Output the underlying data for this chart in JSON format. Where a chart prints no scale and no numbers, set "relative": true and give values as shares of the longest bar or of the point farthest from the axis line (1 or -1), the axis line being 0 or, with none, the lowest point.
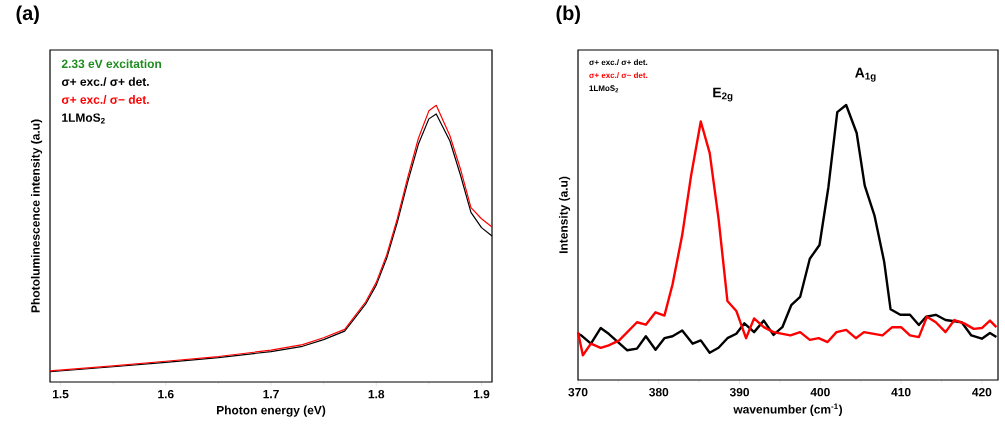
{
  "chart_data": [
    {
      "type": "line",
      "title": "(a)",
      "xlabel": "Photon energy (eV)",
      "ylabel": "Photoluminescence intensity (a.u)",
      "relative": true,
      "xlim": [
        1.49,
        1.91
      ],
      "xticks": [
        1.5,
        1.6,
        1.7,
        1.8,
        1.9
      ],
      "annotations": [
        "2.33 eV excitation",
        "1LMoS$_{2}$"
      ],
      "series": [
        {
          "name": "σ+ exc./ σ+ det.",
          "color": "#000000",
          "x": [
            1.49,
            1.55,
            1.6,
            1.65,
            1.7,
            1.73,
            1.75,
            1.77,
            1.78,
            1.79,
            1.8,
            1.81,
            1.82,
            1.83,
            1.84,
            1.85,
            1.857,
            1.87,
            1.88,
            1.89,
            1.9,
            1.91
          ],
          "values": [
            0.037,
            0.055,
            0.071,
            0.088,
            0.11,
            0.129,
            0.153,
            0.184,
            0.233,
            0.282,
            0.35,
            0.448,
            0.577,
            0.724,
            0.859,
            0.951,
            0.969,
            0.871,
            0.748,
            0.613,
            0.558,
            0.528
          ]
        },
        {
          "name": "σ+ exc./ σ− det.",
          "color": "#ff0000",
          "x": [
            1.49,
            1.55,
            1.6,
            1.65,
            1.7,
            1.73,
            1.75,
            1.77,
            1.78,
            1.79,
            1.8,
            1.81,
            1.82,
            1.83,
            1.84,
            1.85,
            1.857,
            1.87,
            1.88,
            1.89,
            1.9,
            1.91
          ],
          "values": [
            0.04,
            0.058,
            0.075,
            0.092,
            0.115,
            0.135,
            0.16,
            0.19,
            0.24,
            0.29,
            0.36,
            0.46,
            0.59,
            0.74,
            0.88,
            0.98,
            1.0,
            0.89,
            0.77,
            0.63,
            0.59,
            0.56
          ]
        }
      ]
    },
    {
      "type": "line",
      "title": "(b)",
      "xlabel": "wavenumber (cm$^{-1}$)",
      "ylabel": "Intensity (a.u)",
      "relative": true,
      "xlim": [
        370,
        422
      ],
      "xticks": [
        370,
        380,
        390,
        400,
        410,
        420
      ],
      "annotations": [
        "1LMoS$_{2}$",
        "E$_{2g}$",
        "A$_{1g}$"
      ],
      "series": [
        {
          "name": "σ+ exc./ σ+ det.",
          "color": "#000000",
          "x": [
            370.0,
            370.4,
            371.6,
            372.8,
            373.8,
            376.1,
            377.3,
            378.4,
            379.6,
            380.7,
            381.7,
            382.9,
            384.2,
            385.2,
            386.3,
            387.4,
            388.5,
            389.6,
            390.6,
            391.8,
            393.0,
            394.2,
            395.3,
            396.4,
            397.5,
            398.7,
            399.9,
            401.0,
            402.1,
            403.2,
            404.5,
            405.5,
            406.7,
            407.9,
            408.7,
            409.9,
            411.1,
            412.2,
            413.1,
            414.3,
            415.5,
            417.5,
            418.7,
            420.0,
            421.0,
            421.8
          ],
          "values": [
            0.168,
            0.162,
            0.132,
            0.189,
            0.168,
            0.108,
            0.114,
            0.159,
            0.11,
            0.152,
            0.159,
            0.18,
            0.132,
            0.144,
            0.099,
            0.117,
            0.152,
            0.168,
            0.206,
            0.174,
            0.216,
            0.164,
            0.192,
            0.272,
            0.302,
            0.441,
            0.491,
            0.701,
            0.974,
            1,
            0.898,
            0.707,
            0.599,
            0.431,
            0.257,
            0.237,
            0.237,
            0.2,
            0.23,
            0.237,
            0.218,
            0.21,
            0.162,
            0.15,
            0.171,
            0.156
          ]
        },
        {
          "name": "σ+ exc./ σ− det.",
          "color": "#ff0000",
          "x": [
            370.0,
            370.6,
            371.6,
            372.8,
            373.8,
            375.1,
            377.3,
            378.4,
            379.6,
            380.7,
            381.7,
            382.9,
            384.0,
            385.2,
            386.3,
            387.4,
            388.5,
            389.6,
            390.8,
            391.8,
            393.0,
            394.2,
            396.3,
            397.5,
            398.7,
            399.8,
            400.9,
            402.0,
            403.2,
            404.4,
            405.4,
            407.7,
            408.9,
            410.0,
            411.1,
            412.2,
            413.2,
            414.3,
            415.5,
            416.6,
            417.8,
            419.0,
            420.0,
            421.0,
            421.8
          ],
          "values": [
            0.174,
            0.09,
            0.132,
            0.117,
            0.126,
            0.144,
            0.21,
            0.201,
            0.246,
            0.234,
            0.347,
            0.527,
            0.743,
            0.94,
            0.826,
            0.587,
            0.287,
            0.251,
            0.152,
            0.224,
            0.192,
            0.174,
            0.162,
            0.174,
            0.146,
            0.152,
            0.138,
            0.174,
            0.182,
            0.152,
            0.174,
            0.162,
            0.192,
            0.192,
            0.162,
            0.156,
            0.23,
            0.21,
            0.174,
            0.218,
            0.206,
            0.186,
            0.189,
            0.216,
            0.192
          ]
        }
      ]
    }
  ]
}
